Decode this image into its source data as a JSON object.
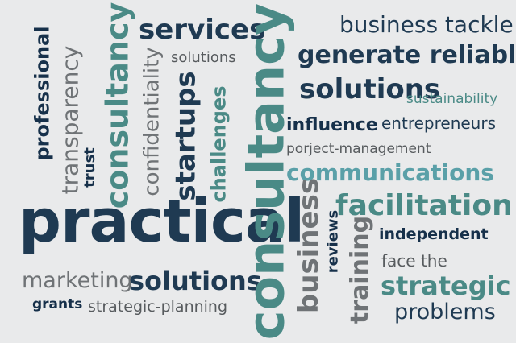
{
  "colors": {
    "background": "#e9eaeb",
    "navy": "#1f3a52",
    "dark_navy": "#16304a",
    "teal": "#4a8a86",
    "light_teal": "#5aa0a8",
    "gray": "#6f7376",
    "dark_gray": "#575b5e"
  },
  "words": {
    "services": "services",
    "business_tackle": "business tackle",
    "solutions_small": "solutions",
    "generate_reliable": "generate reliable",
    "solutions_big": "solutions",
    "sustainability": "sustainability",
    "influence": "influence",
    "entrepreneurs": "entrepreneurs",
    "porject_management": "porject-management",
    "communications": "communications",
    "facilitation": "facilitation",
    "independent": "independent",
    "face_the": "face the",
    "strategic": "strategic",
    "problems": "problems",
    "practical": "practical",
    "marketing": "marketing",
    "solutions_bottom": "solutions",
    "grants": "grants",
    "strategic_planning": "strategic-planning",
    "professional": "professional",
    "transparency": "transparency",
    "trust": "trust",
    "consultancy_mid": "consultancy",
    "confidentiality": "confidentiality",
    "startups": "startups",
    "challenges": "challenges",
    "consultancy_big": "consultancy",
    "business_vertical": "business",
    "reviews": "reviews",
    "training": "training"
  }
}
